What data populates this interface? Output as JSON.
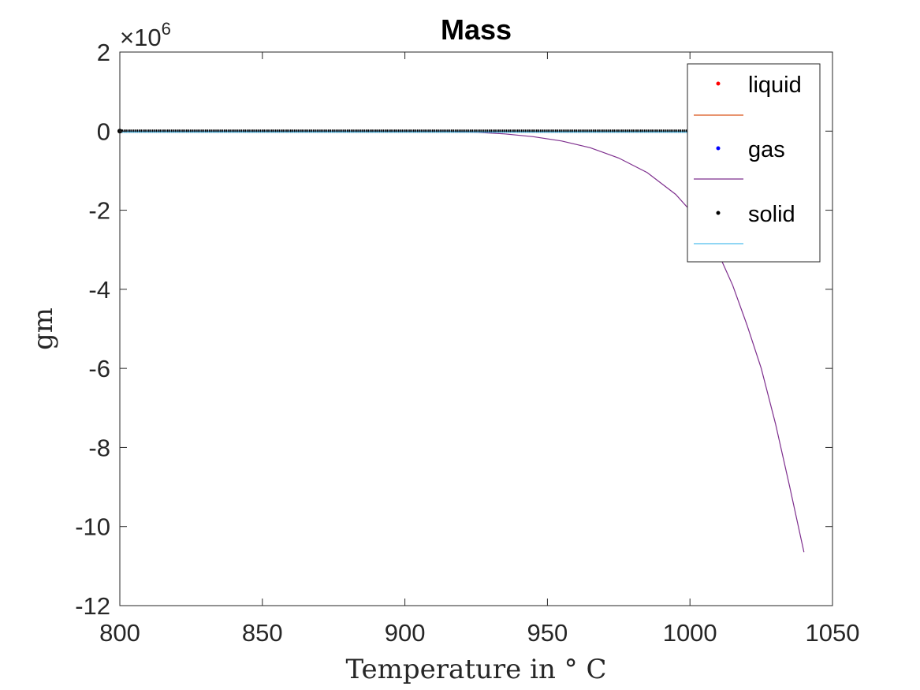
{
  "chart_data": {
    "type": "line",
    "title": "Mass",
    "xlabel": "Temperature in ° C",
    "ylabel": "gm",
    "y_exponent_base": "×10",
    "y_exponent": "6",
    "xlim": [
      800,
      1050
    ],
    "ylim": [
      -12,
      2
    ],
    "x_ticks": [
      800,
      850,
      900,
      950,
      1000,
      1050
    ],
    "y_ticks": [
      2,
      0,
      -2,
      -4,
      -6,
      -8,
      -10,
      -12
    ],
    "grid": false,
    "legend_position": "top-right",
    "legend": [
      {
        "label": "liquid",
        "marker_color": "#ff0000",
        "line_color": "#d95319"
      },
      {
        "label": "gas",
        "marker_color": "#0000ff",
        "line_color": "#7e2f8e"
      },
      {
        "label": "solid",
        "marker_color": "#000000",
        "line_color": "#4dbeee"
      }
    ],
    "series": [
      {
        "color": "#d95319",
        "x": [
          800,
          850,
          900,
          950,
          1000,
          1040
        ],
        "y": [
          0,
          0,
          0,
          0,
          0,
          0
        ]
      },
      {
        "color": "#7e2f8e",
        "x": [
          800,
          850,
          900,
          915,
          925,
          935,
          945,
          955,
          965,
          975,
          985,
          995,
          1000,
          1005,
          1010,
          1015,
          1020,
          1025,
          1030,
          1035,
          1040
        ],
        "y": [
          0,
          0,
          0,
          0,
          -0.03,
          -0.07,
          -0.14,
          -0.25,
          -0.42,
          -0.68,
          -1.05,
          -1.6,
          -2.0,
          -2.5,
          -3.1,
          -3.9,
          -4.9,
          -6.0,
          -7.4,
          -9.0,
          -10.65
        ]
      },
      {
        "color": "#4dbeee",
        "x": [
          800,
          850,
          900,
          950,
          1000,
          1040
        ],
        "y": [
          0,
          0,
          0,
          0,
          0,
          0
        ]
      }
    ]
  }
}
